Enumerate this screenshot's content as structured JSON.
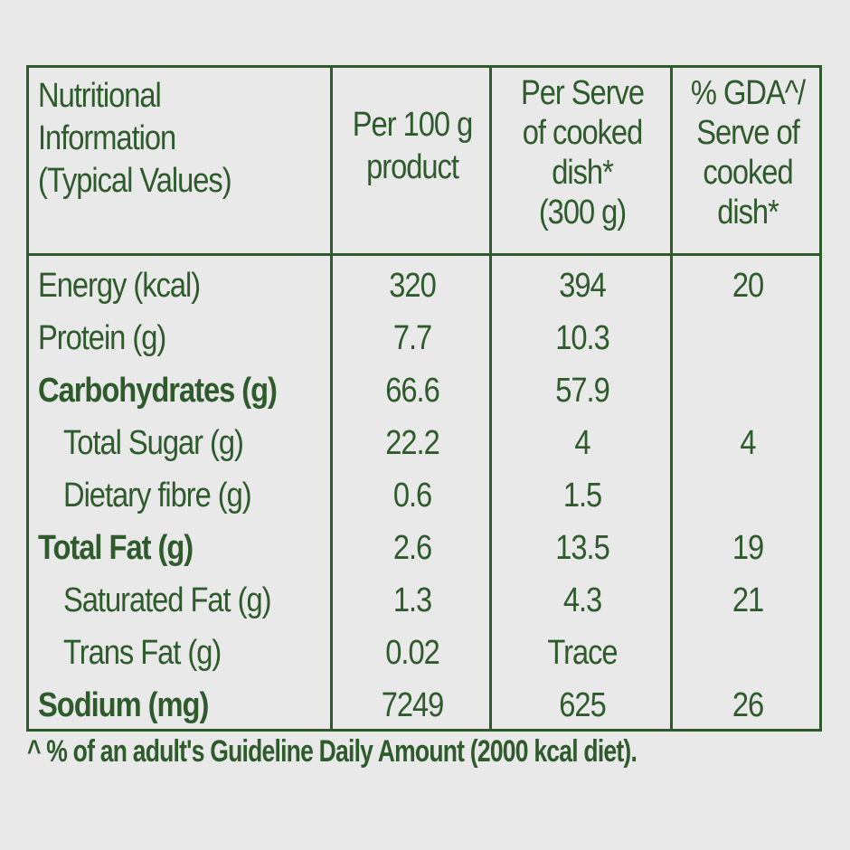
{
  "header": {
    "col1": [
      "Nutritional",
      "Information",
      "(Typical Values)"
    ],
    "col2": [
      "Per 100 g",
      "product"
    ],
    "col3": [
      "Per Serve",
      "of cooked",
      "dish*",
      "(300 g)"
    ],
    "col4": [
      "% GDA^/",
      "Serve of",
      "cooked",
      "dish*"
    ]
  },
  "rows": [
    {
      "name": "Energy (kcal)",
      "per100": "320",
      "perServe": "394",
      "gda": "20"
    },
    {
      "name": "Protein (g)",
      "per100": "7.7",
      "perServe": "10.3",
      "gda": ""
    },
    {
      "name": "Carbohydrates (g)",
      "per100": "66.6",
      "perServe": "57.9",
      "gda": ""
    },
    {
      "name": "Total Sugar (g)",
      "per100": "22.2",
      "perServe": "4",
      "gda": "4"
    },
    {
      "name": "Dietary fibre (g)",
      "per100": "0.6",
      "perServe": "1.5",
      "gda": ""
    },
    {
      "name": "Total Fat (g)",
      "per100": "2.6",
      "perServe": "13.5",
      "gda": "19"
    },
    {
      "name": "Saturated Fat (g)",
      "per100": "1.3",
      "perServe": "4.3",
      "gda": "21"
    },
    {
      "name": "Trans Fat (g)",
      "per100": "0.02",
      "perServe": "Trace",
      "gda": ""
    },
    {
      "name": "Sodium (mg)",
      "per100": "7249",
      "perServe": "625",
      "gda": "26"
    }
  ],
  "footnote": "^ % of an adult's Guideline Daily Amount (2000 kcal diet).",
  "colors": {
    "text": "#2e5a2c",
    "background": "#e9e9e9"
  }
}
